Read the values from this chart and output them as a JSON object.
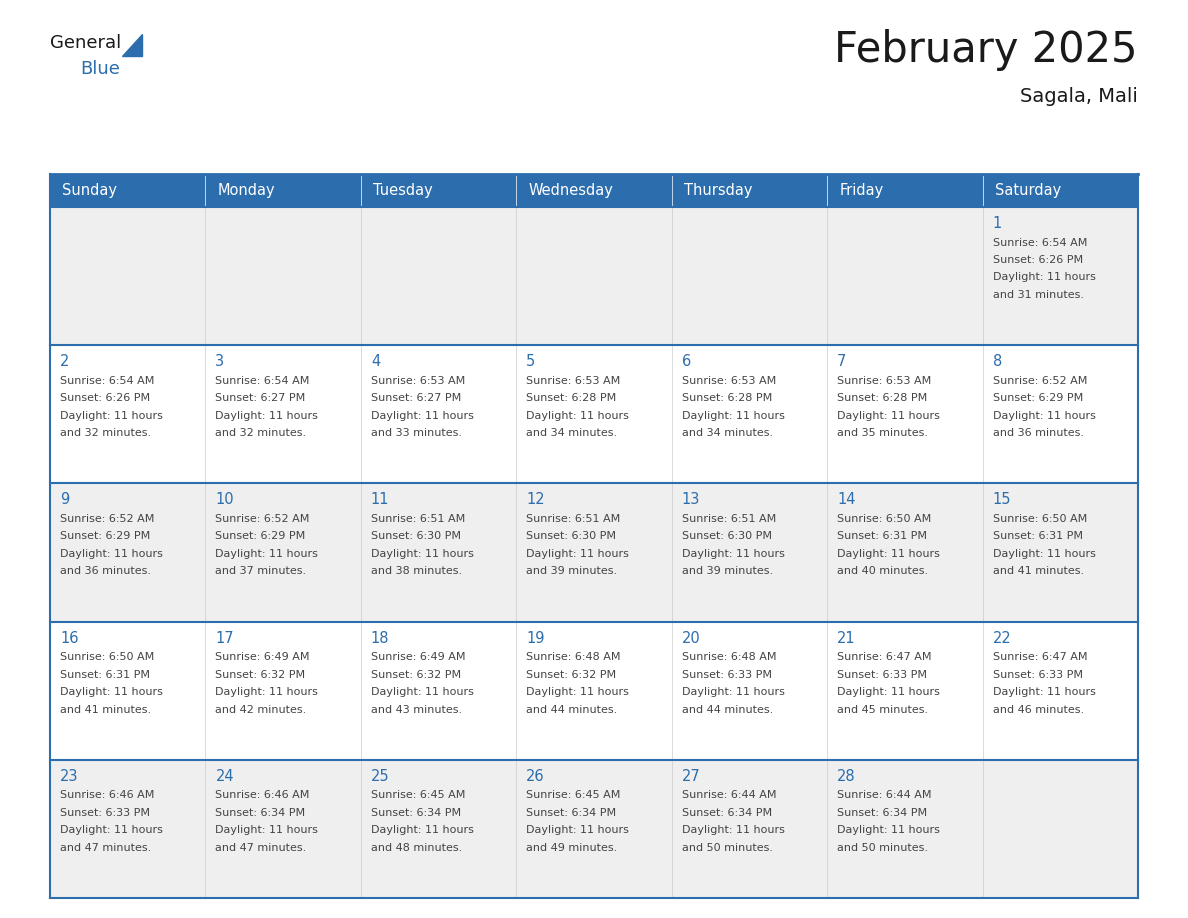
{
  "title": "February 2025",
  "subtitle": "Sagala, Mali",
  "day_names": [
    "Sunday",
    "Monday",
    "Tuesday",
    "Wednesday",
    "Thursday",
    "Friday",
    "Saturday"
  ],
  "days": [
    {
      "day": 1,
      "col": 6,
      "row": 0,
      "sunrise": "6:54 AM",
      "sunset": "6:26 PM",
      "daylight_h": "11",
      "daylight_m": "31"
    },
    {
      "day": 2,
      "col": 0,
      "row": 1,
      "sunrise": "6:54 AM",
      "sunset": "6:26 PM",
      "daylight_h": "11",
      "daylight_m": "32"
    },
    {
      "day": 3,
      "col": 1,
      "row": 1,
      "sunrise": "6:54 AM",
      "sunset": "6:27 PM",
      "daylight_h": "11",
      "daylight_m": "32"
    },
    {
      "day": 4,
      "col": 2,
      "row": 1,
      "sunrise": "6:53 AM",
      "sunset": "6:27 PM",
      "daylight_h": "11",
      "daylight_m": "33"
    },
    {
      "day": 5,
      "col": 3,
      "row": 1,
      "sunrise": "6:53 AM",
      "sunset": "6:28 PM",
      "daylight_h": "11",
      "daylight_m": "34"
    },
    {
      "day": 6,
      "col": 4,
      "row": 1,
      "sunrise": "6:53 AM",
      "sunset": "6:28 PM",
      "daylight_h": "11",
      "daylight_m": "34"
    },
    {
      "day": 7,
      "col": 5,
      "row": 1,
      "sunrise": "6:53 AM",
      "sunset": "6:28 PM",
      "daylight_h": "11",
      "daylight_m": "35"
    },
    {
      "day": 8,
      "col": 6,
      "row": 1,
      "sunrise": "6:52 AM",
      "sunset": "6:29 PM",
      "daylight_h": "11",
      "daylight_m": "36"
    },
    {
      "day": 9,
      "col": 0,
      "row": 2,
      "sunrise": "6:52 AM",
      "sunset": "6:29 PM",
      "daylight_h": "11",
      "daylight_m": "36"
    },
    {
      "day": 10,
      "col": 1,
      "row": 2,
      "sunrise": "6:52 AM",
      "sunset": "6:29 PM",
      "daylight_h": "11",
      "daylight_m": "37"
    },
    {
      "day": 11,
      "col": 2,
      "row": 2,
      "sunrise": "6:51 AM",
      "sunset": "6:30 PM",
      "daylight_h": "11",
      "daylight_m": "38"
    },
    {
      "day": 12,
      "col": 3,
      "row": 2,
      "sunrise": "6:51 AM",
      "sunset": "6:30 PM",
      "daylight_h": "11",
      "daylight_m": "39"
    },
    {
      "day": 13,
      "col": 4,
      "row": 2,
      "sunrise": "6:51 AM",
      "sunset": "6:30 PM",
      "daylight_h": "11",
      "daylight_m": "39"
    },
    {
      "day": 14,
      "col": 5,
      "row": 2,
      "sunrise": "6:50 AM",
      "sunset": "6:31 PM",
      "daylight_h": "11",
      "daylight_m": "40"
    },
    {
      "day": 15,
      "col": 6,
      "row": 2,
      "sunrise": "6:50 AM",
      "sunset": "6:31 PM",
      "daylight_h": "11",
      "daylight_m": "41"
    },
    {
      "day": 16,
      "col": 0,
      "row": 3,
      "sunrise": "6:50 AM",
      "sunset": "6:31 PM",
      "daylight_h": "11",
      "daylight_m": "41"
    },
    {
      "day": 17,
      "col": 1,
      "row": 3,
      "sunrise": "6:49 AM",
      "sunset": "6:32 PM",
      "daylight_h": "11",
      "daylight_m": "42"
    },
    {
      "day": 18,
      "col": 2,
      "row": 3,
      "sunrise": "6:49 AM",
      "sunset": "6:32 PM",
      "daylight_h": "11",
      "daylight_m": "43"
    },
    {
      "day": 19,
      "col": 3,
      "row": 3,
      "sunrise": "6:48 AM",
      "sunset": "6:32 PM",
      "daylight_h": "11",
      "daylight_m": "44"
    },
    {
      "day": 20,
      "col": 4,
      "row": 3,
      "sunrise": "6:48 AM",
      "sunset": "6:33 PM",
      "daylight_h": "11",
      "daylight_m": "44"
    },
    {
      "day": 21,
      "col": 5,
      "row": 3,
      "sunrise": "6:47 AM",
      "sunset": "6:33 PM",
      "daylight_h": "11",
      "daylight_m": "45"
    },
    {
      "day": 22,
      "col": 6,
      "row": 3,
      "sunrise": "6:47 AM",
      "sunset": "6:33 PM",
      "daylight_h": "11",
      "daylight_m": "46"
    },
    {
      "day": 23,
      "col": 0,
      "row": 4,
      "sunrise": "6:46 AM",
      "sunset": "6:33 PM",
      "daylight_h": "11",
      "daylight_m": "47"
    },
    {
      "day": 24,
      "col": 1,
      "row": 4,
      "sunrise": "6:46 AM",
      "sunset": "6:34 PM",
      "daylight_h": "11",
      "daylight_m": "47"
    },
    {
      "day": 25,
      "col": 2,
      "row": 4,
      "sunrise": "6:45 AM",
      "sunset": "6:34 PM",
      "daylight_h": "11",
      "daylight_m": "48"
    },
    {
      "day": 26,
      "col": 3,
      "row": 4,
      "sunrise": "6:45 AM",
      "sunset": "6:34 PM",
      "daylight_h": "11",
      "daylight_m": "49"
    },
    {
      "day": 27,
      "col": 4,
      "row": 4,
      "sunrise": "6:44 AM",
      "sunset": "6:34 PM",
      "daylight_h": "11",
      "daylight_m": "50"
    },
    {
      "day": 28,
      "col": 5,
      "row": 4,
      "sunrise": "6:44 AM",
      "sunset": "6:34 PM",
      "daylight_h": "11",
      "daylight_m": "50"
    }
  ],
  "num_rows": 5,
  "num_cols": 7,
  "header_bg": "#2B6DAD",
  "header_text_color": "#FFFFFF",
  "border_color": "#2B6DAD",
  "row_bg_colors": [
    "#EFEFEF",
    "#FFFFFF"
  ],
  "text_color": "#444444",
  "day_num_color": "#2B6DAD",
  "title_color": "#1A1A1A",
  "logo_general_color": "#1A1A1A",
  "logo_blue_color": "#2B6DAD",
  "fig_width": 11.88,
  "fig_height": 9.18
}
